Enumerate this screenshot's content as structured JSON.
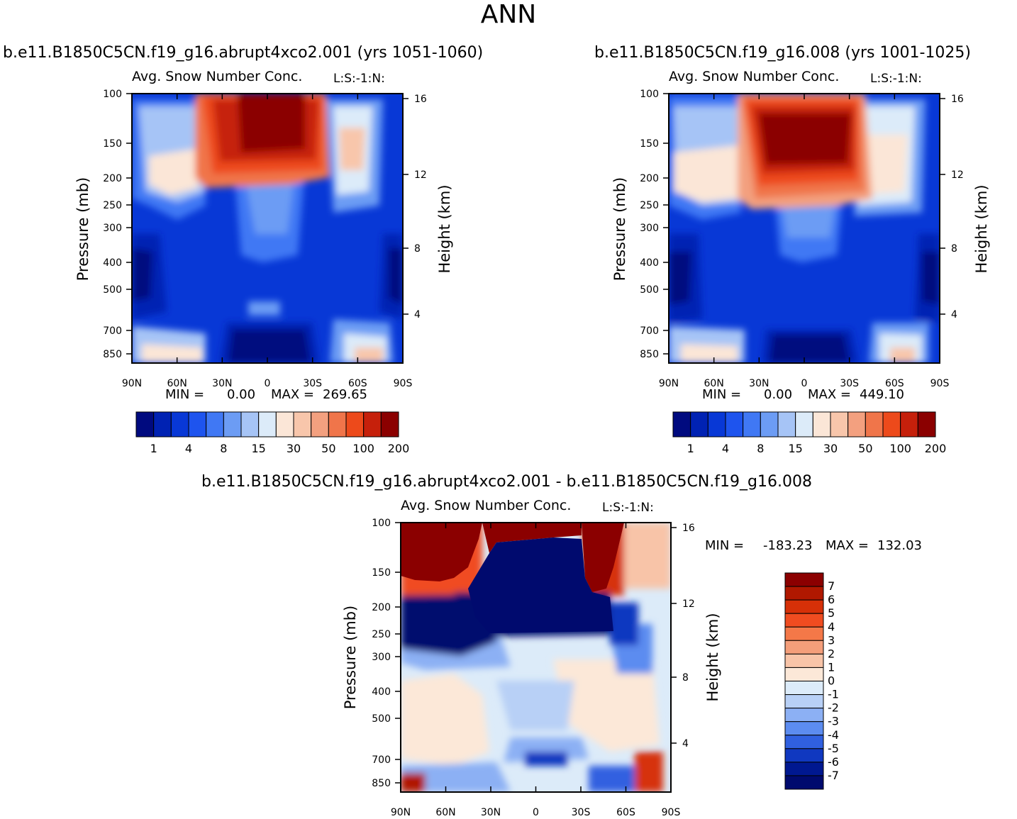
{
  "page": {
    "title": "ANN"
  },
  "chart_data": [
    {
      "type": "heatmap",
      "case_title": "b.e11.B1850C5CN.f19_g16.abrupt4xco2.001 (yrs 1051-1060)",
      "variable": "Avg. Snow Number Conc.",
      "subtitle": "L:S:-1:N:",
      "ylabel": "Pressure (mb)",
      "y2label": "Height (km)",
      "x_ticks": [
        "90N",
        "60N",
        "30N",
        "0",
        "30S",
        "60S",
        "90S"
      ],
      "y_ticks": [
        "100",
        "150",
        "200",
        "250",
        "300",
        "400",
        "500",
        "700",
        "850"
      ],
      "y2_ticks": [
        "16",
        "12",
        "8",
        "4"
      ],
      "min_label": "MIN =",
      "min_value": "0.00",
      "max_label": "MAX =",
      "max_value": "269.65",
      "colorbar_labels": [
        "1",
        "4",
        "8",
        "15",
        "30",
        "50",
        "100",
        "200"
      ],
      "colorbar_colors": [
        "#000a7f",
        "#0022b3",
        "#0838d6",
        "#1e54ee",
        "#4078f4",
        "#6c9cf4",
        "#a6c4f6",
        "#dcebf9",
        "#fbe6d7",
        "#f8c6ab",
        "#f3a07f",
        "#f0754a",
        "#ed4a1b",
        "#c6200b",
        "#8b0000"
      ]
    },
    {
      "type": "heatmap",
      "case_title": "b.e11.B1850C5CN.f19_g16.008 (yrs 1001-1025)",
      "variable": "Avg. Snow Number Conc.",
      "subtitle": "L:S:-1:N:",
      "ylabel": "Pressure (mb)",
      "y2label": "Height (km)",
      "x_ticks": [
        "90N",
        "60N",
        "30N",
        "0",
        "30S",
        "60S",
        "90S"
      ],
      "y_ticks": [
        "100",
        "150",
        "200",
        "250",
        "300",
        "400",
        "500",
        "700",
        "850"
      ],
      "y2_ticks": [
        "16",
        "12",
        "8",
        "4"
      ],
      "min_label": "MIN =",
      "min_value": "0.00",
      "max_label": "MAX =",
      "max_value": "449.10",
      "colorbar_labels": [
        "1",
        "4",
        "8",
        "15",
        "30",
        "50",
        "100",
        "200"
      ],
      "colorbar_colors": [
        "#000a7f",
        "#0022b3",
        "#0838d6",
        "#1e54ee",
        "#4078f4",
        "#6c9cf4",
        "#a6c4f6",
        "#dcebf9",
        "#fbe6d7",
        "#f8c6ab",
        "#f3a07f",
        "#f0754a",
        "#ed4a1b",
        "#c6200b",
        "#8b0000"
      ]
    },
    {
      "type": "heatmap",
      "case_title": "b.e11.B1850C5CN.f19_g16.abrupt4xco2.001 - b.e11.B1850C5CN.f19_g16.008",
      "variable": "Avg. Snow Number Conc.",
      "subtitle": "L:S:-1:N:",
      "ylabel": "Pressure (mb)",
      "y2label": "Height (km)",
      "x_ticks": [
        "90N",
        "60N",
        "30N",
        "0",
        "30S",
        "60S",
        "90S"
      ],
      "y_ticks": [
        "100",
        "150",
        "200",
        "250",
        "300",
        "400",
        "500",
        "700",
        "850"
      ],
      "y2_ticks": [
        "16",
        "12",
        "8",
        "4"
      ],
      "min_label": "MIN =",
      "min_value": "-183.23",
      "max_label": "MAX =",
      "max_value": "132.03",
      "colorbar_labels": [
        "7",
        "6",
        "5",
        "4",
        "3",
        "2",
        "1",
        "0",
        "-1",
        "-2",
        "-3",
        "-4",
        "-5",
        "-6",
        "-7"
      ],
      "colorbar_colors": [
        "#8b0000",
        "#b01800",
        "#d63008",
        "#f04c20",
        "#f47848",
        "#f49e7a",
        "#f8c4a8",
        "#fce8d8",
        "#dcebf9",
        "#b8d0f6",
        "#8cb0f4",
        "#5c8cf0",
        "#3060e0",
        "#1038c0",
        "#001890",
        "#000a6e"
      ]
    }
  ]
}
